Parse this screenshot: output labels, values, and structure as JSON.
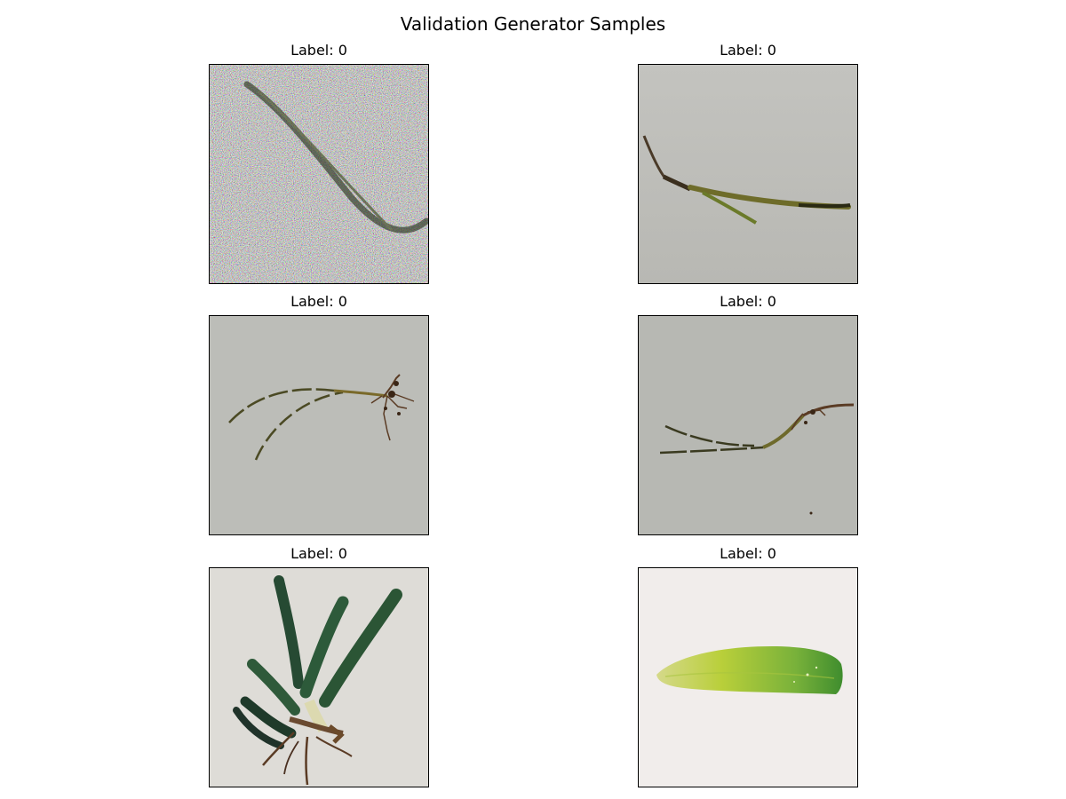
{
  "figure": {
    "title": "Validation Generator Samples"
  },
  "samples": [
    {
      "label": "Label: 0",
      "depicts": "noisy-grass-blade-icon"
    },
    {
      "label": "Label: 0",
      "depicts": "grass-blade-icon"
    },
    {
      "label": "Label: 0",
      "depicts": "seedling-with-roots-icon"
    },
    {
      "label": "Label: 0",
      "depicts": "grass-with-roots-icon"
    },
    {
      "label": "Label: 0",
      "depicts": "plant-with-roots-icon"
    },
    {
      "label": "Label: 0",
      "depicts": "green-leaf-icon"
    }
  ],
  "colors": {
    "background_gray": "#b9bab5",
    "paper_light": "#e8e6e1",
    "paper_pink": "#f2eeec",
    "stem_dark": "#2f3a1c",
    "stem_olive": "#6b6f2a",
    "root_brown": "#5a3b24",
    "leaf_green": "#2f5a3a",
    "leaf_yellow": "#b9cf3a"
  }
}
